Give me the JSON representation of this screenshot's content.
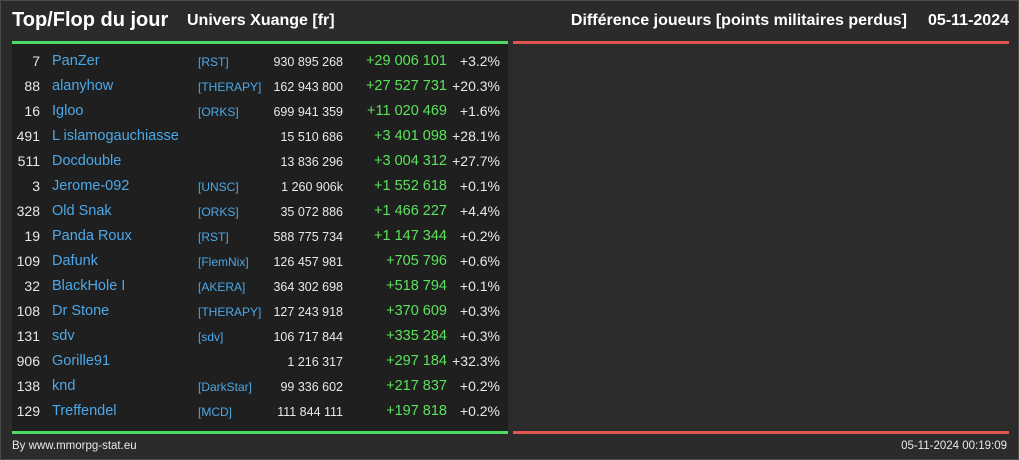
{
  "header": {
    "title": "Top/Flop du jour",
    "universe": "Univers Xuange [fr]",
    "metric": "Différence joueurs [points militaires perdus]",
    "date": "05-11-2024"
  },
  "colors": {
    "top_accent": "#4cd964",
    "flop_accent": "#e0554d",
    "player_link": "#4ca8e8",
    "gain": "#5be35b"
  },
  "top": [
    {
      "rank": "7",
      "name": "PanZer",
      "alliance": "[RST]",
      "points": "930 895 268",
      "diff": "+29 006 101",
      "pct": "+3.2%"
    },
    {
      "rank": "88",
      "name": "alanyhow",
      "alliance": "[THERAPY]",
      "points": "162 943 800",
      "diff": "+27 527 731",
      "pct": "+20.3%"
    },
    {
      "rank": "16",
      "name": "Igloo",
      "alliance": "[ORKS]",
      "points": "699 941 359",
      "diff": "+11 020 469",
      "pct": "+1.6%"
    },
    {
      "rank": "491",
      "name": "L islamogauchiasse",
      "alliance": "",
      "points": "15 510 686",
      "diff": "+3 401 098",
      "pct": "+28.1%"
    },
    {
      "rank": "511",
      "name": "Docdouble",
      "alliance": "",
      "points": "13 836 296",
      "diff": "+3 004 312",
      "pct": "+27.7%"
    },
    {
      "rank": "3",
      "name": "Jerome-092",
      "alliance": "[UNSC]",
      "points": "1 260 906k",
      "diff": "+1 552 618",
      "pct": "+0.1%"
    },
    {
      "rank": "328",
      "name": "Old Snak",
      "alliance": "[ORKS]",
      "points": "35 072 886",
      "diff": "+1 466 227",
      "pct": "+4.4%"
    },
    {
      "rank": "19",
      "name": "Panda Roux",
      "alliance": "[RST]",
      "points": "588 775 734",
      "diff": "+1 147 344",
      "pct": "+0.2%"
    },
    {
      "rank": "109",
      "name": "Dafunk",
      "alliance": "[FlemNix]",
      "points": "126 457 981",
      "diff": "+705 796",
      "pct": "+0.6%"
    },
    {
      "rank": "32",
      "name": "BlackHole I",
      "alliance": "[AKERA]",
      "points": "364 302 698",
      "diff": "+518 794",
      "pct": "+0.1%"
    },
    {
      "rank": "108",
      "name": "Dr Stone",
      "alliance": "[THERAPY]",
      "points": "127 243 918",
      "diff": "+370 609",
      "pct": "+0.3%"
    },
    {
      "rank": "131",
      "name": "sdv",
      "alliance": "[sdv]",
      "points": "106 717 844",
      "diff": "+335 284",
      "pct": "+0.3%"
    },
    {
      "rank": "906",
      "name": "Gorille91",
      "alliance": "",
      "points": "1 216 317",
      "diff": "+297 184",
      "pct": "+32.3%"
    },
    {
      "rank": "138",
      "name": "knd",
      "alliance": "[DarkStar]",
      "points": "99 336 602",
      "diff": "+217 837",
      "pct": "+0.2%"
    },
    {
      "rank": "129",
      "name": "Treffendel",
      "alliance": "[MCD]",
      "points": "111 844 111",
      "diff": "+197 818",
      "pct": "+0.2%"
    }
  ],
  "flop": [],
  "footer": {
    "credit": "By www.mmorpg-stat.eu",
    "timestamp": "05-11-2024 00:19:09"
  }
}
